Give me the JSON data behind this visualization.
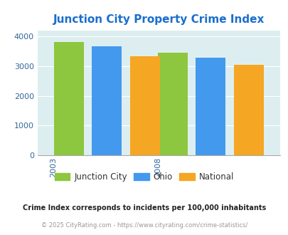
{
  "title": "Junction City Property Crime Index",
  "title_color": "#1a6ecc",
  "years": [
    "2003",
    "2008"
  ],
  "series": {
    "Junction City": [
      3820,
      3460
    ],
    "Ohio": [
      3660,
      3290
    ],
    "National": [
      3340,
      3040
    ]
  },
  "bar_colors": {
    "Junction City": "#8dc63f",
    "Ohio": "#4299ee",
    "National": "#f5a623"
  },
  "ylim": [
    0,
    4200
  ],
  "yticks": [
    0,
    1000,
    2000,
    3000,
    4000
  ],
  "plot_bg": "#ddeef0",
  "fig_bg": "#ffffff",
  "legend_labels": [
    "Junction City",
    "Ohio",
    "National"
  ],
  "footer1": "Crime Index corresponds to incidents per 100,000 inhabitants",
  "footer2": "© 2025 CityRating.com - https://www.cityrating.com/crime-statistics/",
  "footer1_color": "#222222",
  "footer2_color": "#999999",
  "ytick_color": "#336699",
  "xtick_color": "#336699"
}
